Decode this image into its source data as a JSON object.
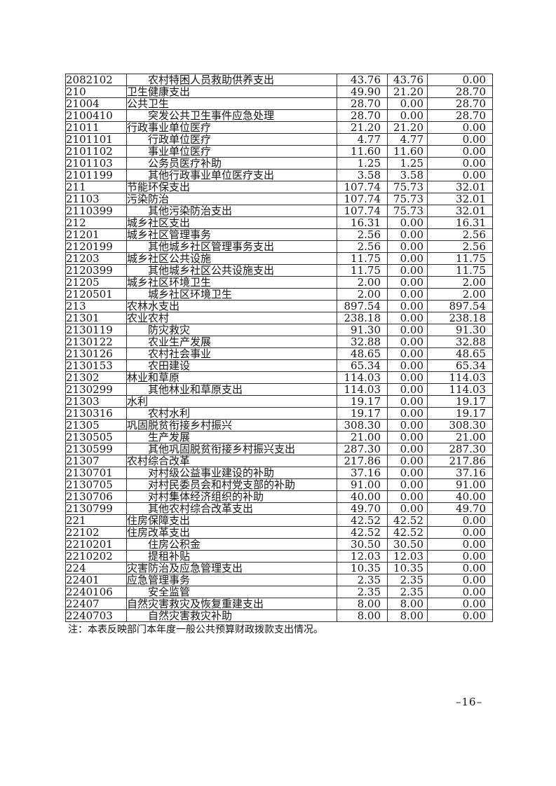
{
  "table": {
    "rows": [
      {
        "code": "2082102",
        "name": "农村特困人员救助供养支出",
        "indent": true,
        "values": [
          "43.76",
          "43.76",
          "0.00"
        ]
      },
      {
        "code": "210",
        "name": "卫生健康支出",
        "indent": false,
        "values": [
          "49.90",
          "21.20",
          "28.70"
        ]
      },
      {
        "code": "21004",
        "name": "公共卫生",
        "indent": false,
        "values": [
          "28.70",
          "0.00",
          "28.70"
        ]
      },
      {
        "code": "2100410",
        "name": "突发公共卫生事件应急处理",
        "indent": true,
        "values": [
          "28.70",
          "0.00",
          "28.70"
        ]
      },
      {
        "code": "21011",
        "name": "行政事业单位医疗",
        "indent": false,
        "values": [
          "21.20",
          "21.20",
          "0.00"
        ]
      },
      {
        "code": "2101101",
        "name": "行政单位医疗",
        "indent": true,
        "values": [
          "4.77",
          "4.77",
          "0.00"
        ]
      },
      {
        "code": "2101102",
        "name": "事业单位医疗",
        "indent": true,
        "values": [
          "11.60",
          "11.60",
          "0.00"
        ]
      },
      {
        "code": "2101103",
        "name": "公务员医疗补助",
        "indent": true,
        "values": [
          "1.25",
          "1.25",
          "0.00"
        ]
      },
      {
        "code": "2101199",
        "name": "其他行政事业单位医疗支出",
        "indent": true,
        "values": [
          "3.58",
          "3.58",
          "0.00"
        ]
      },
      {
        "code": "211",
        "name": "节能环保支出",
        "indent": false,
        "values": [
          "107.74",
          "75.73",
          "32.01"
        ]
      },
      {
        "code": "21103",
        "name": "污染防治",
        "indent": false,
        "values": [
          "107.74",
          "75.73",
          "32.01"
        ]
      },
      {
        "code": "2110399",
        "name": "其他污染防治支出",
        "indent": true,
        "values": [
          "107.74",
          "75.73",
          "32.01"
        ]
      },
      {
        "code": "212",
        "name": "城乡社区支出",
        "indent": false,
        "values": [
          "16.31",
          "0.00",
          "16.31"
        ]
      },
      {
        "code": "21201",
        "name": "城乡社区管理事务",
        "indent": false,
        "values": [
          "2.56",
          "0.00",
          "2.56"
        ]
      },
      {
        "code": "2120199",
        "name": "其他城乡社区管理事务支出",
        "indent": true,
        "values": [
          "2.56",
          "0.00",
          "2.56"
        ]
      },
      {
        "code": "21203",
        "name": "城乡社区公共设施",
        "indent": false,
        "values": [
          "11.75",
          "0.00",
          "11.75"
        ]
      },
      {
        "code": "2120399",
        "name": "其他城乡社区公共设施支出",
        "indent": true,
        "values": [
          "11.75",
          "0.00",
          "11.75"
        ]
      },
      {
        "code": "21205",
        "name": "城乡社区环境卫生",
        "indent": false,
        "values": [
          "2.00",
          "0.00",
          "2.00"
        ]
      },
      {
        "code": "2120501",
        "name": "城乡社区环境卫生",
        "indent": true,
        "values": [
          "2.00",
          "0.00",
          "2.00"
        ]
      },
      {
        "code": "213",
        "name": "农林水支出",
        "indent": false,
        "values": [
          "897.54",
          "0.00",
          "897.54"
        ]
      },
      {
        "code": "21301",
        "name": "农业农村",
        "indent": false,
        "values": [
          "238.18",
          "0.00",
          "238.18"
        ]
      },
      {
        "code": "2130119",
        "name": "防灾救灾",
        "indent": true,
        "values": [
          "91.30",
          "0.00",
          "91.30"
        ]
      },
      {
        "code": "2130122",
        "name": "农业生产发展",
        "indent": true,
        "values": [
          "32.88",
          "0.00",
          "32.88"
        ]
      },
      {
        "code": "2130126",
        "name": "农村社会事业",
        "indent": true,
        "values": [
          "48.65",
          "0.00",
          "48.65"
        ]
      },
      {
        "code": "2130153",
        "name": "农田建设",
        "indent": true,
        "values": [
          "65.34",
          "0.00",
          "65.34"
        ]
      },
      {
        "code": "21302",
        "name": "林业和草原",
        "indent": false,
        "values": [
          "114.03",
          "0.00",
          "114.03"
        ]
      },
      {
        "code": "2130299",
        "name": "其他林业和草原支出",
        "indent": true,
        "values": [
          "114.03",
          "0.00",
          "114.03"
        ]
      },
      {
        "code": "21303",
        "name": "水利",
        "indent": false,
        "values": [
          "19.17",
          "0.00",
          "19.17"
        ]
      },
      {
        "code": "2130316",
        "name": "农村水利",
        "indent": true,
        "values": [
          "19.17",
          "0.00",
          "19.17"
        ]
      },
      {
        "code": "21305",
        "name": "巩固脱贫衔接乡村振兴",
        "indent": false,
        "values": [
          "308.30",
          "0.00",
          "308.30"
        ]
      },
      {
        "code": "2130505",
        "name": "生产发展",
        "indent": true,
        "values": [
          "21.00",
          "0.00",
          "21.00"
        ]
      },
      {
        "code": "2130599",
        "name": "其他巩固脱贫衔接乡村振兴支出",
        "indent": true,
        "values": [
          "287.30",
          "0.00",
          "287.30"
        ]
      },
      {
        "code": "21307",
        "name": "农村综合改革",
        "indent": false,
        "values": [
          "217.86",
          "0.00",
          "217.86"
        ]
      },
      {
        "code": "2130701",
        "name": "对村级公益事业建设的补助",
        "indent": true,
        "values": [
          "37.16",
          "0.00",
          "37.16"
        ]
      },
      {
        "code": "2130705",
        "name": "对村民委员会和村党支部的补助",
        "indent": true,
        "values": [
          "91.00",
          "0.00",
          "91.00"
        ]
      },
      {
        "code": "2130706",
        "name": "对村集体经济组织的补助",
        "indent": true,
        "values": [
          "40.00",
          "0.00",
          "40.00"
        ]
      },
      {
        "code": "2130799",
        "name": "其他农村综合改革支出",
        "indent": true,
        "values": [
          "49.70",
          "0.00",
          "49.70"
        ]
      },
      {
        "code": "221",
        "name": "住房保障支出",
        "indent": false,
        "values": [
          "42.52",
          "42.52",
          "0.00"
        ]
      },
      {
        "code": "22102",
        "name": "住房改革支出",
        "indent": false,
        "values": [
          "42.52",
          "42.52",
          "0.00"
        ]
      },
      {
        "code": "2210201",
        "name": "住房公积金",
        "indent": true,
        "values": [
          "30.50",
          "30.50",
          "0.00"
        ]
      },
      {
        "code": "2210202",
        "name": "提租补贴",
        "indent": true,
        "values": [
          "12.03",
          "12.03",
          "0.00"
        ]
      },
      {
        "code": "224",
        "name": "灾害防治及应急管理支出",
        "indent": false,
        "values": [
          "10.35",
          "10.35",
          "0.00"
        ]
      },
      {
        "code": "22401",
        "name": "应急管理事务",
        "indent": false,
        "values": [
          "2.35",
          "2.35",
          "0.00"
        ]
      },
      {
        "code": "2240106",
        "name": "安全监管",
        "indent": true,
        "values": [
          "2.35",
          "2.35",
          "0.00"
        ]
      },
      {
        "code": "22407",
        "name": "自然灾害救灾及恢复重建支出",
        "indent": false,
        "values": [
          "8.00",
          "8.00",
          "0.00"
        ]
      },
      {
        "code": "2240703",
        "name": "自然灾害救灾补助",
        "indent": true,
        "values": [
          "8.00",
          "8.00",
          "0.00"
        ]
      }
    ]
  },
  "footer": {
    "note": "注：本表反映部门本年度一般公共预算财政拨款支出情况。",
    "page_number": "–16–"
  }
}
